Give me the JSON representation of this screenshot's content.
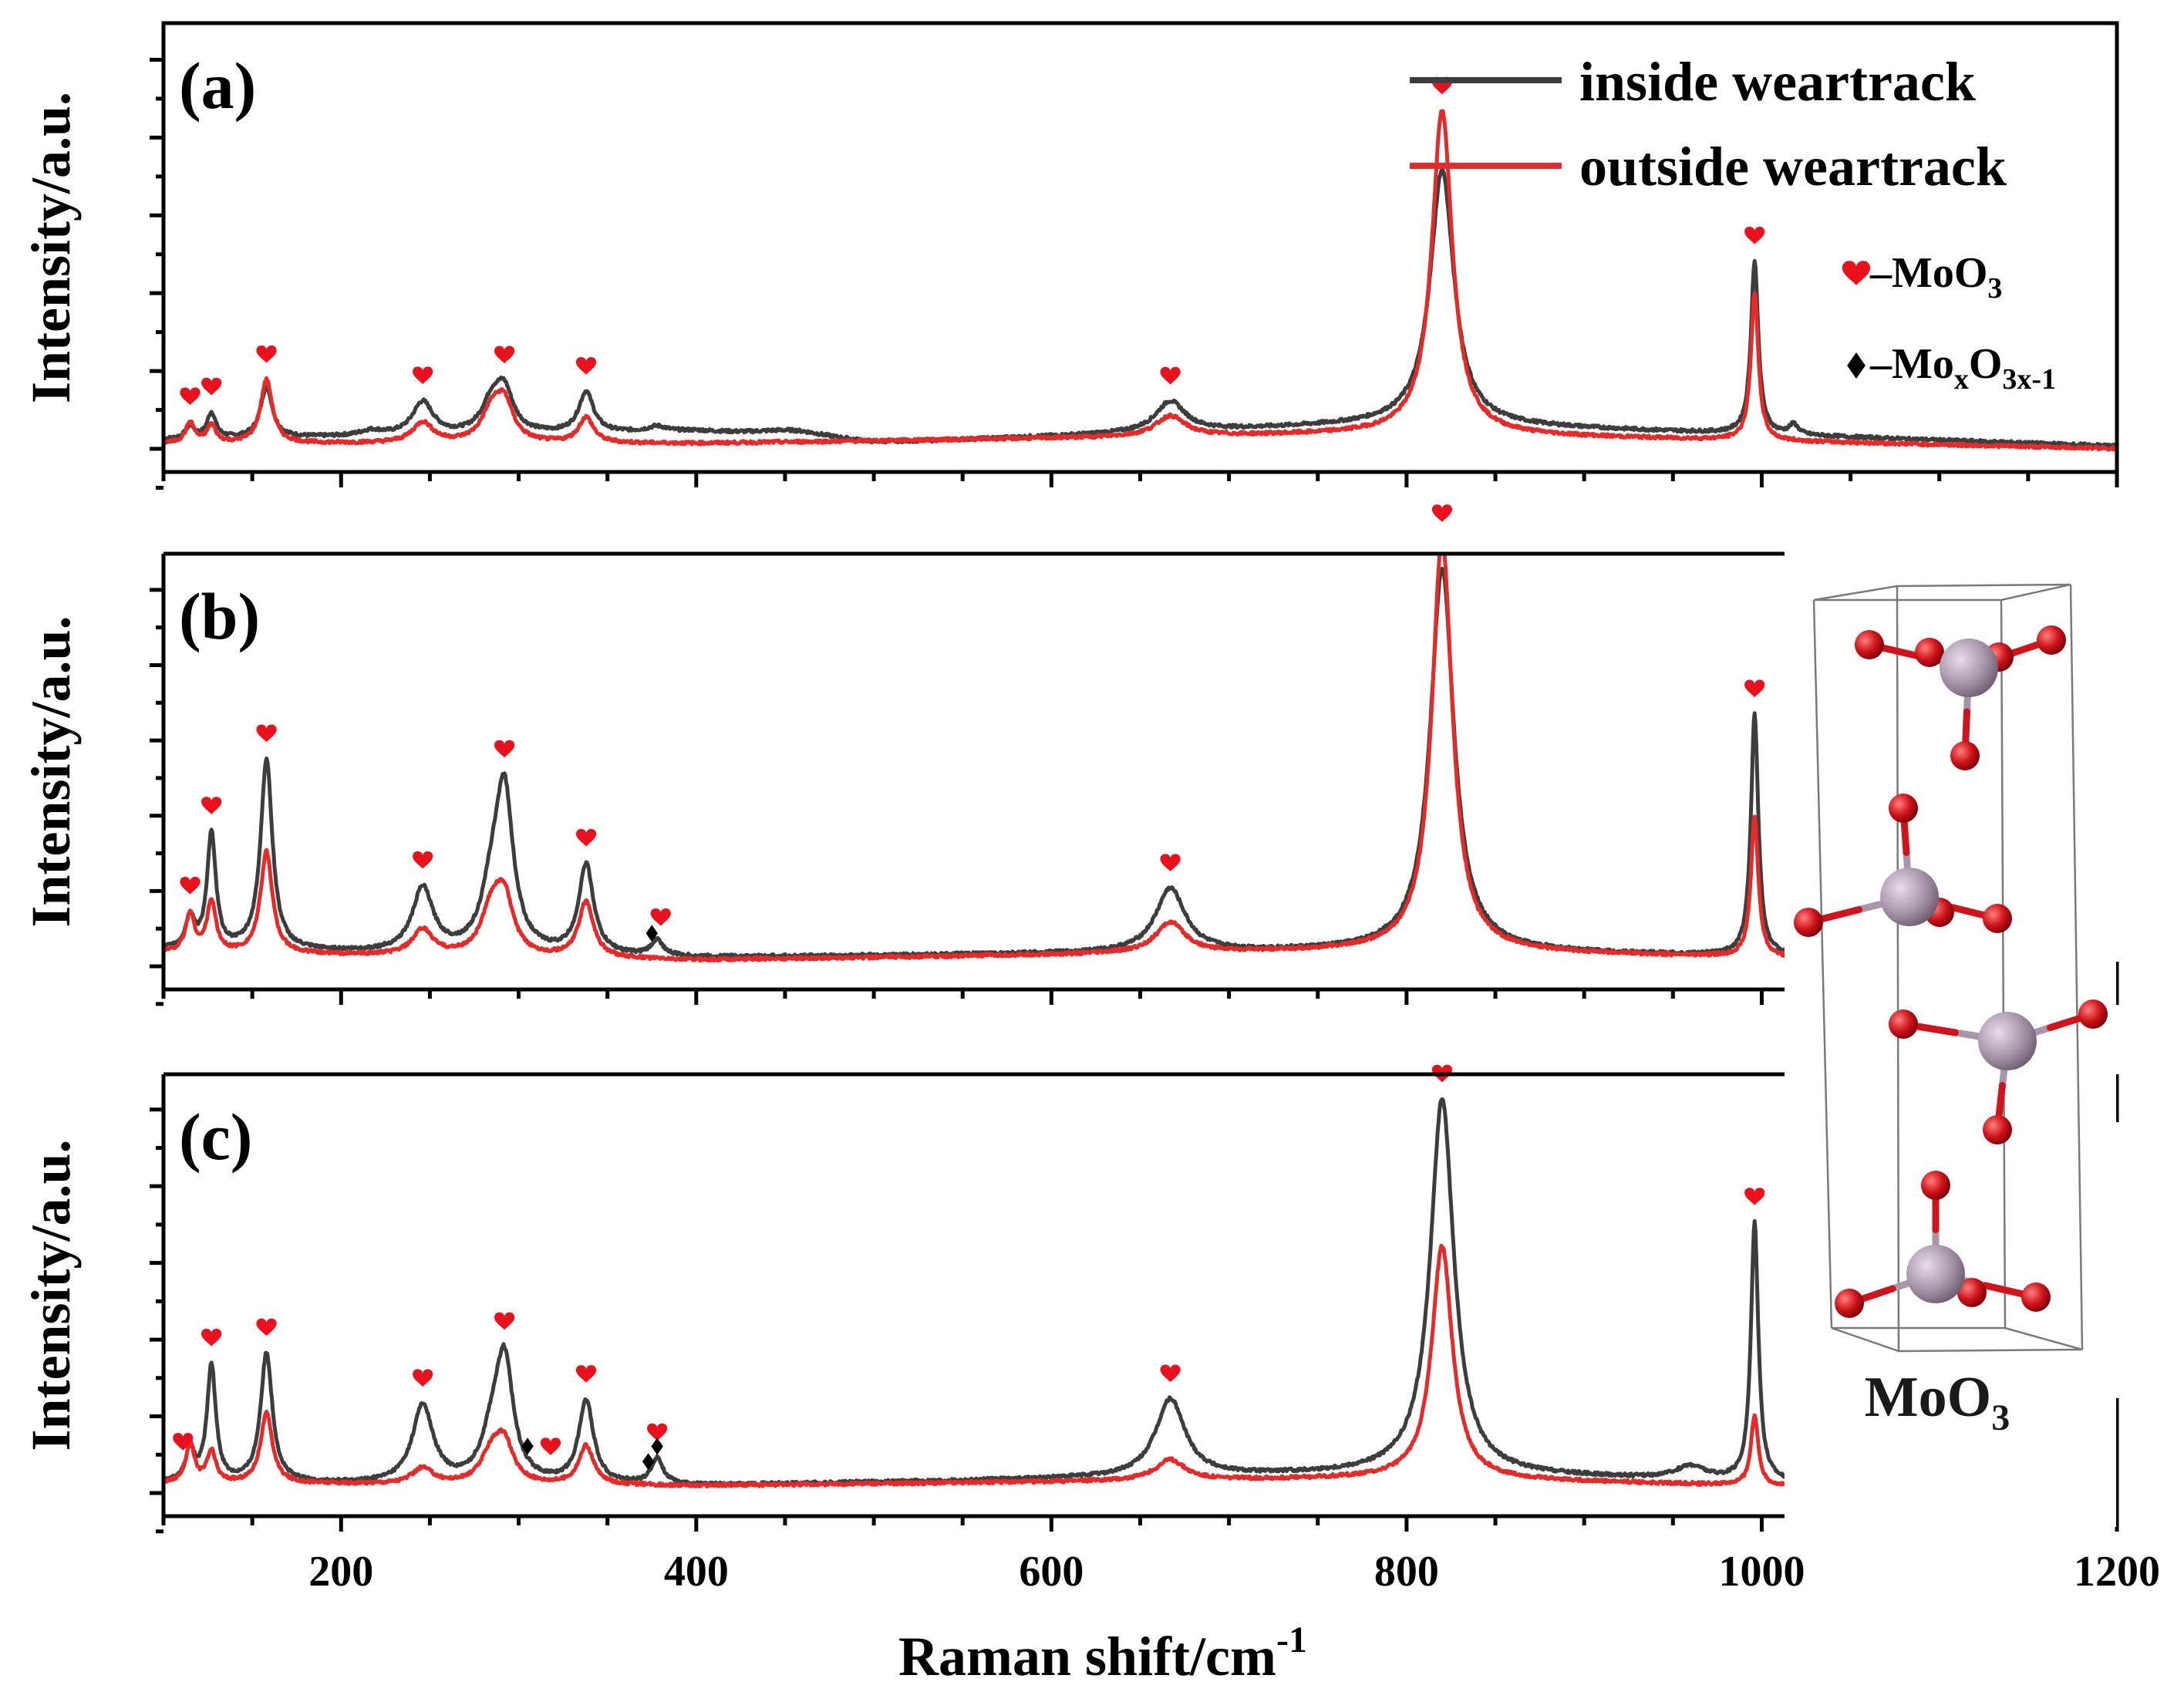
{
  "chart_data": {
    "type": "line",
    "xlabel": "Raman shift/cm",
    "xlabel_sup": "-1",
    "xlim": [
      100,
      1200
    ],
    "xticks": [
      200,
      400,
      600,
      800,
      1000,
      1200
    ],
    "ylabel": "Intensity/a.u.",
    "legend": [
      {
        "name": "inside weartrack",
        "color": "#3d3d3d"
      },
      {
        "name": "outside weartrack",
        "color": "#e52a2a"
      }
    ],
    "marker_legend": [
      {
        "symbol": "heart",
        "label": "–MoO",
        "sub": "3",
        "color": "#e8111c"
      },
      {
        "symbol": "diamond",
        "label": "–Mo",
        "sub1": "x",
        "mid": "O",
        "sub2": "3x-1",
        "color": "#000000"
      }
    ],
    "panels": [
      {
        "label": "(a)",
        "series": [
          {
            "name": "inside weartrack",
            "color": "#3d3d3d",
            "baseline": [
              [
                100,
                0.045
              ],
              [
                400,
                0.075
              ],
              [
                500,
                0.03
              ],
              [
                800,
                0.11
              ],
              [
                1200,
                0.02
              ]
            ],
            "peaks": [
              [
                115,
                0.05,
                3
              ],
              [
                127,
                0.1,
                3
              ],
              [
                158,
                0.2,
                4
              ],
              [
                217,
                0.02,
                8
              ],
              [
                246,
                0.13,
                7
              ],
              [
                285,
                0.12,
                7
              ],
              [
                292,
                0.15,
                6
              ],
              [
                338,
                0.16,
                5
              ],
              [
                378,
                0.02,
                6
              ],
              [
                455,
                0.03,
                25
              ],
              [
                667,
                0.12,
                10
              ],
              [
                820,
                1.0,
                8
              ],
              [
                996,
                0.68,
                2.5
              ],
              [
                1018,
                0.04,
                3
              ]
            ]
          },
          {
            "name": "outside weartrack",
            "color": "#e52a2a",
            "baseline": [
              [
                100,
                0.03
              ],
              [
                400,
                0.03
              ],
              [
                800,
                0.07
              ],
              [
                1200,
                0.01
              ]
            ],
            "peaks": [
              [
                115,
                0.08,
                3
              ],
              [
                127,
                0.07,
                3
              ],
              [
                158,
                0.25,
                4
              ],
              [
                246,
                0.08,
                7
              ],
              [
                285,
                0.12,
                7
              ],
              [
                292,
                0.14,
                6
              ],
              [
                338,
                0.1,
                5
              ],
              [
                667,
                0.08,
                10
              ],
              [
                820,
                1.27,
                7
              ],
              [
                996,
                0.58,
                2.5
              ]
            ]
          }
        ],
        "hearts_at": [
          115,
          127,
          158,
          246,
          292,
          338,
          667,
          820,
          996
        ],
        "diamonds_at": []
      },
      {
        "label": "(b)",
        "series": [
          {
            "name": "inside weartrack",
            "color": "#3d3d3d",
            "baseline": [
              [
                100,
                0.07
              ],
              [
                400,
                0.04
              ],
              [
                800,
                0.07
              ],
              [
                1200,
                0.02
              ]
            ],
            "peaks": [
              [
                115,
                0.12,
                3
              ],
              [
                127,
                0.45,
                3
              ],
              [
                158,
                0.75,
                4
              ],
              [
                246,
                0.25,
                7
              ],
              [
                285,
                0.2,
                7
              ],
              [
                292,
                0.6,
                6
              ],
              [
                338,
                0.35,
                5
              ],
              [
                378,
                0.06,
                4
              ],
              [
                667,
                0.25,
                10
              ],
              [
                820,
                1.5,
                8
              ],
              [
                996,
                0.95,
                2.5
              ]
            ]
          },
          {
            "name": "outside weartrack",
            "color": "#e52a2a",
            "baseline": [
              [
                100,
                0.06
              ],
              [
                400,
                0.03
              ],
              [
                800,
                0.07
              ],
              [
                1200,
                0.01
              ]
            ],
            "peaks": [
              [
                115,
                0.15,
                3
              ],
              [
                127,
                0.2,
                3
              ],
              [
                158,
                0.4,
                4
              ],
              [
                246,
                0.1,
                7
              ],
              [
                285,
                0.18,
                7
              ],
              [
                292,
                0.2,
                6
              ],
              [
                338,
                0.22,
                5
              ],
              [
                667,
                0.12,
                10
              ],
              [
                820,
                1.62,
                7
              ],
              [
                996,
                0.55,
                2.5
              ]
            ]
          }
        ],
        "hearts_at": [
          115,
          127,
          158,
          246,
          292,
          338,
          380,
          667,
          820,
          996
        ],
        "diamonds_at": [
          375
        ]
      },
      {
        "label": "(c)",
        "series": [
          {
            "name": "inside weartrack",
            "color": "#3d3d3d",
            "baseline": [
              [
                100,
                0.05
              ],
              [
                400,
                0.04
              ],
              [
                800,
                0.09
              ],
              [
                1200,
                0.02
              ]
            ],
            "peaks": [
              [
                115,
                0.12,
                3
              ],
              [
                127,
                0.45,
                3
              ],
              [
                158,
                0.5,
                4
              ],
              [
                246,
                0.3,
                7
              ],
              [
                285,
                0.15,
                7
              ],
              [
                292,
                0.45,
                6
              ],
              [
                338,
                0.32,
                5
              ],
              [
                378,
                0.1,
                4
              ],
              [
                667,
                0.3,
                10
              ],
              [
                820,
                1.45,
                8
              ],
              [
                960,
                0.05,
                10
              ],
              [
                996,
                1.0,
                2.5
              ]
            ]
          },
          {
            "name": "outside weartrack",
            "color": "#e52a2a",
            "baseline": [
              [
                100,
                0.05
              ],
              [
                400,
                0.04
              ],
              [
                800,
                0.07
              ],
              [
                1200,
                0.01
              ]
            ],
            "peaks": [
              [
                115,
                0.15,
                3
              ],
              [
                127,
                0.12,
                3
              ],
              [
                158,
                0.27,
                4
              ],
              [
                246,
                0.06,
                7
              ],
              [
                285,
                0.12,
                7
              ],
              [
                292,
                0.14,
                6
              ],
              [
                338,
                0.15,
                5
              ],
              [
                667,
                0.08,
                10
              ],
              [
                820,
                0.9,
                7
              ],
              [
                996,
                0.27,
                2.5
              ]
            ]
          }
        ],
        "hearts_at": [
          111,
          127,
          158,
          246,
          292,
          318,
          338,
          378,
          667,
          820,
          996
        ],
        "diamonds_at": [
          305,
          373,
          378
        ]
      }
    ]
  },
  "inset": {
    "label": "MoO",
    "label_sub": "3",
    "colors": {
      "oxygen": "#d0141b",
      "molybdenum": "#a895ab",
      "cell": "#7a7a7a"
    }
  }
}
